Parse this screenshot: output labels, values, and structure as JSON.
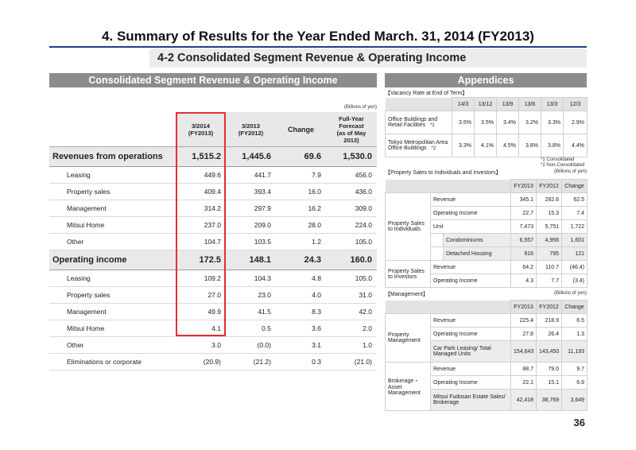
{
  "header": {
    "title": "4. Summary of Results for the Year Ended March. 31, 2014 (FY2013)",
    "subtitle": "4-2  Consolidated Segment Revenue & Operating Income"
  },
  "left": {
    "heading": "Consolidated Segment Revenue & Operating Income",
    "unit": "(Billions of yen)",
    "columns": [
      {
        "l1": "3/2014",
        "l2": "(FY2013)"
      },
      {
        "l1": "3/2013",
        "l2": "(FY2012)"
      },
      {
        "l1": "Change",
        "l2": ""
      },
      {
        "l1": "Full-Year Forecast",
        "l2": "(as of May 2013)"
      }
    ],
    "rows": [
      {
        "label": "Revenues from operations",
        "v": [
          "1,515.2",
          "1,445.6",
          "69.6",
          "1,530.0"
        ],
        "big": true
      },
      {
        "label": "Leasing",
        "v": [
          "449.6",
          "441.7",
          "7.9",
          "456.0"
        ]
      },
      {
        "label": "Property sales",
        "v": [
          "409.4",
          "393.4",
          "16.0",
          "436.0"
        ]
      },
      {
        "label": "Management",
        "v": [
          "314.2",
          "297.9",
          "16.2",
          "309.0"
        ]
      },
      {
        "label": "Mitsui Home",
        "v": [
          "237.0",
          "209.0",
          "28.0",
          "224.0"
        ]
      },
      {
        "label": "Other",
        "v": [
          "104.7",
          "103.5",
          "1.2",
          "105.0"
        ]
      },
      {
        "label": "Operating income",
        "v": [
          "172.5",
          "148.1",
          "24.3",
          "160.0"
        ],
        "big": true
      },
      {
        "label": "Leasing",
        "v": [
          "109.2",
          "104.3",
          "4.8",
          "105.0"
        ]
      },
      {
        "label": "Property sales",
        "v": [
          "27.0",
          "23.0",
          "4.0",
          "31.0"
        ]
      },
      {
        "label": "Management",
        "v": [
          "49.9",
          "41.5",
          "8.3",
          "42.0"
        ]
      },
      {
        "label": "Mitsui Home",
        "v": [
          "4.1",
          "0.5",
          "3.6",
          "2.0"
        ]
      },
      {
        "label": "Other",
        "v": [
          "3.0",
          "(0.0)",
          "3.1",
          "1.0"
        ]
      },
      {
        "label": "Eliminations or corporate",
        "v": [
          "(20.9)",
          "(21.2)",
          "0.3",
          "(21.0)"
        ]
      }
    ]
  },
  "right": {
    "heading": "Appendices",
    "vacancy": {
      "title": "【Vacancy Rate at End of Term】",
      "cols": [
        "14/3",
        "13/12",
        "13/9",
        "13/6",
        "13/3",
        "12/3"
      ],
      "rows": [
        {
          "label": "Office Buildings and Retail Facilities",
          "note": "*1",
          "v": [
            "3.5%",
            "3.5%",
            "3.4%",
            "3.2%",
            "3.3%",
            "2.9%"
          ]
        },
        {
          "label": "Tokyo Metropolitan Area Office Buildings",
          "note": "*2",
          "v": [
            "3.3%",
            "4.1%",
            "4.5%",
            "3.8%",
            "3.8%",
            "4.4%"
          ]
        }
      ],
      "note1": "*1 Consolidated",
      "note2": "*2 Non-Consolidated"
    },
    "sales": {
      "title": "【Property Sales to Individuals and Investors】",
      "unit": "(Billions of yen)",
      "cols": [
        "FY2013",
        "FY2012",
        "Change"
      ],
      "groups": [
        {
          "name": "Property Sales to Individuals",
          "rows": [
            {
              "label": "Revenue",
              "v": [
                "345.1",
                "282.6",
                "62.5"
              ]
            },
            {
              "label": "Operating Income",
              "v": [
                "22.7",
                "15.3",
                "7.4"
              ]
            },
            {
              "label": "Unit",
              "v": [
                "7,473",
                "5,751",
                "1,722"
              ]
            },
            {
              "label": "Condominiums",
              "v": [
                "6,557",
                "4,956",
                "1,601"
              ],
              "sub": true
            },
            {
              "label": "Detached Housing",
              "v": [
                "916",
                "795",
                "121"
              ],
              "sub": true
            }
          ]
        },
        {
          "name": "Property Sales to Investors",
          "rows": [
            {
              "label": "Revenue",
              "v": [
                "64.2",
                "110.7",
                "(46.4)"
              ]
            },
            {
              "label": "Operating Income",
              "v": [
                "4.3",
                "7.7",
                "(3.4)"
              ]
            }
          ]
        }
      ]
    },
    "management": {
      "title": "【Management】",
      "unit": "(Billions of yen)",
      "cols": [
        "FY2013",
        "FY2012",
        "Change"
      ],
      "groups": [
        {
          "name": "Property Management",
          "rows": [
            {
              "label": "Revenue",
              "v": [
                "225.4",
                "218.9",
                "6.5"
              ]
            },
            {
              "label": "Operating Income",
              "v": [
                "27.8",
                "26.4",
                "1.3"
              ]
            },
            {
              "label": "Car Park Leasing/ Total Managed Units",
              "v": [
                "154,643",
                "143,450",
                "11,193"
              ],
              "shade": true
            }
          ]
        },
        {
          "name": "Brokerage・Asset Management",
          "rows": [
            {
              "label": "Revenue",
              "v": [
                "88.7",
                "79.0",
                "9.7"
              ]
            },
            {
              "label": "Operating Income",
              "v": [
                "22.1",
                "15.1",
                "6.9"
              ]
            },
            {
              "label": "Mitsui Fudosan Estate Sales/ Brokerage",
              "v": [
                "42,418",
                "38,769",
                "3,649"
              ],
              "shade": true
            }
          ]
        }
      ]
    }
  },
  "page_number": "36"
}
